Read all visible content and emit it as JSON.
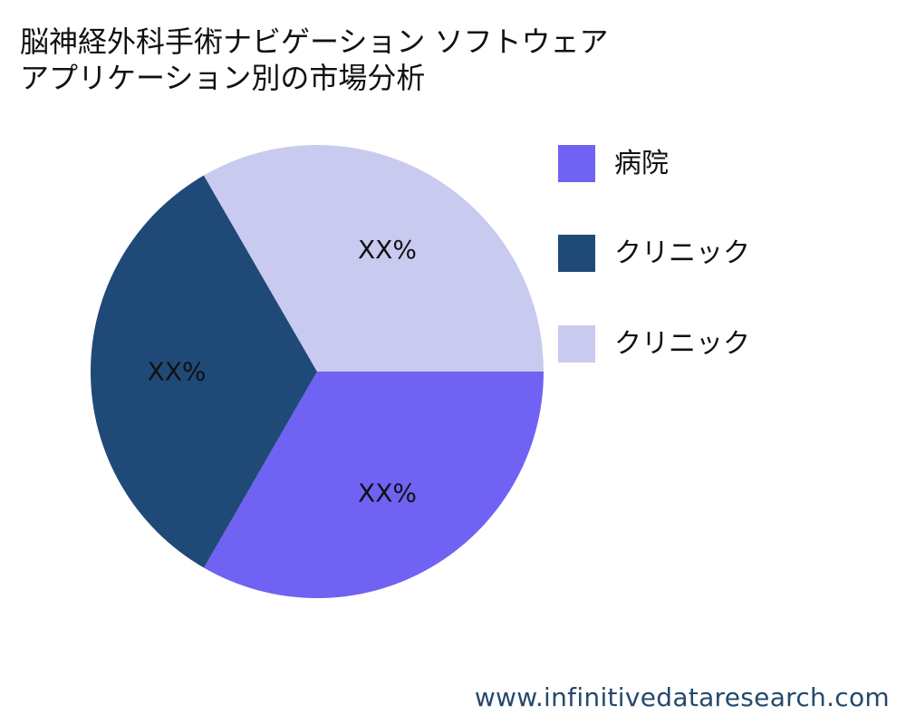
{
  "chart_data": {
    "type": "pie",
    "title": [
      "脳神経外科手術ナビゲーション ソフトウェア",
      "アプリケーション別の市場分析"
    ],
    "slices": [
      {
        "label": "病院",
        "value": 33.33,
        "display": "XX%",
        "color": "#7062f2"
      },
      {
        "label": "クリニック",
        "value": 33.33,
        "display": "XX%",
        "color": "#1f4a78"
      },
      {
        "label": "クリニック",
        "value": 33.34,
        "display": "XX%",
        "color": "#c9caf0"
      }
    ],
    "legend_position": "right"
  },
  "watermark": "www.infinitivedataresearch.com"
}
